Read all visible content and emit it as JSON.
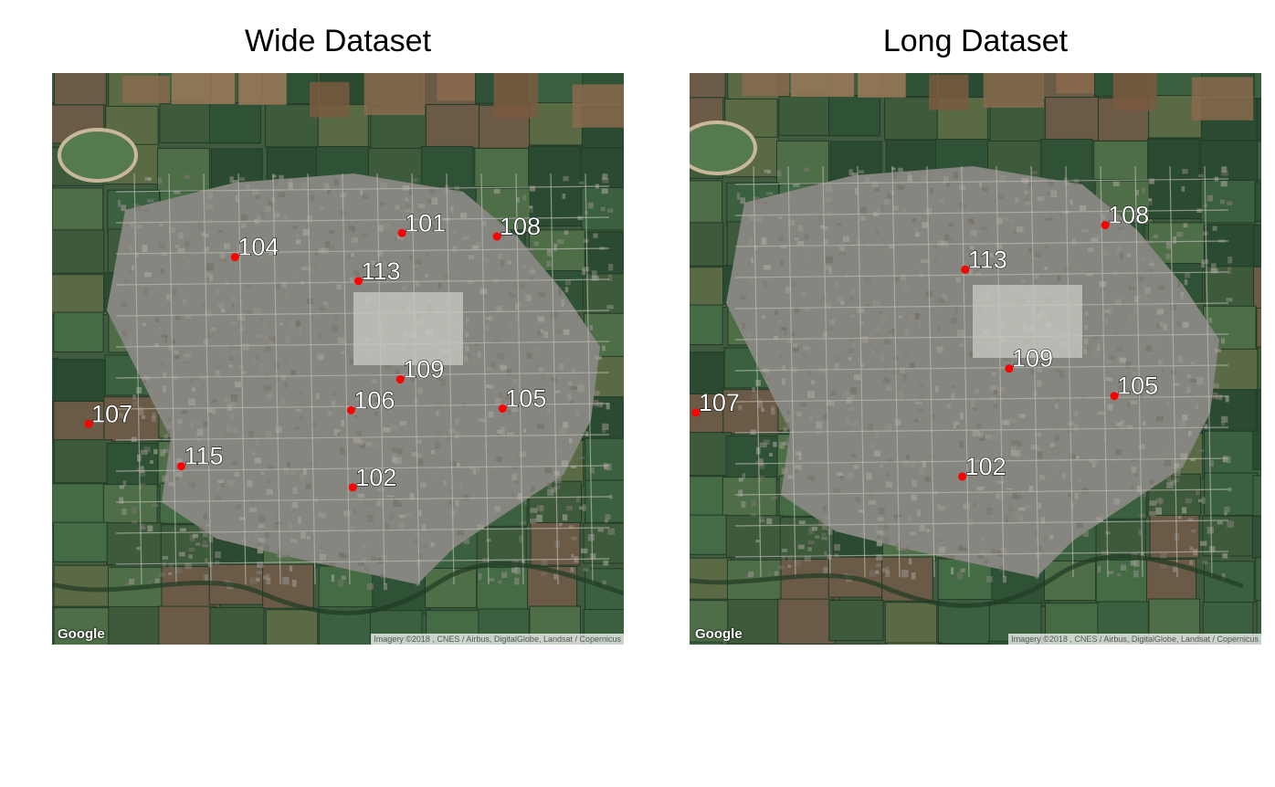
{
  "panels": [
    {
      "title": "Wide Dataset",
      "points": [
        {
          "id": "101",
          "x": 0.612,
          "y": 0.28
        },
        {
          "id": "108",
          "x": 0.778,
          "y": 0.286
        },
        {
          "id": "104",
          "x": 0.32,
          "y": 0.322
        },
        {
          "id": "113",
          "x": 0.536,
          "y": 0.364
        },
        {
          "id": "109",
          "x": 0.609,
          "y": 0.536
        },
        {
          "id": "105",
          "x": 0.788,
          "y": 0.587
        },
        {
          "id": "106",
          "x": 0.523,
          "y": 0.59
        },
        {
          "id": "107",
          "x": 0.064,
          "y": 0.614
        },
        {
          "id": "115",
          "x": 0.226,
          "y": 0.688
        },
        {
          "id": "102",
          "x": 0.526,
          "y": 0.725
        }
      ]
    },
    {
      "title": "Long Dataset",
      "points": [
        {
          "id": "108",
          "x": 0.727,
          "y": 0.266
        },
        {
          "id": "113",
          "x": 0.482,
          "y": 0.344
        },
        {
          "id": "109",
          "x": 0.559,
          "y": 0.517
        },
        {
          "id": "105",
          "x": 0.743,
          "y": 0.565
        },
        {
          "id": "107",
          "x": 0.011,
          "y": 0.594
        },
        {
          "id": "102",
          "x": 0.477,
          "y": 0.706
        }
      ]
    }
  ],
  "logo_text": "Google",
  "attribution_text": "Imagery ©2018 , CNES / Airbus, DigitalGlobe, Landsat / Copernicus",
  "colors": {
    "point": "#ff0000",
    "label_fill": "#ffffff",
    "label_stroke": "#000000",
    "urban": "#8f8f8a",
    "field": "#35583a"
  }
}
